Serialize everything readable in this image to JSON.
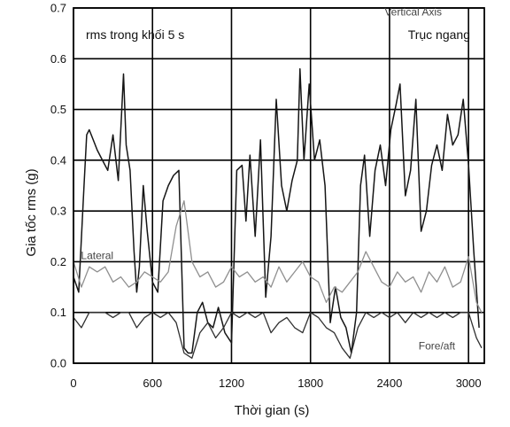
{
  "chart_data": {
    "type": "line",
    "title": "",
    "xlabel": "Thời gian (s)",
    "ylabel": "Gia tốc rms (g)",
    "xlim": [
      0,
      3120
    ],
    "ylim": [
      0,
      0.7
    ],
    "x_ticks": [
      "0",
      "600",
      "1200",
      "1800",
      "2400",
      "3000"
    ],
    "x_tick_values": [
      0,
      600,
      1200,
      1800,
      2400,
      3000
    ],
    "y_ticks": [
      "0.0",
      "0.1",
      "0.2",
      "0.3",
      "0.4",
      "0.5",
      "0.6",
      "0.7"
    ],
    "y_tick_values": [
      0,
      0.1,
      0.2,
      0.3,
      0.4,
      0.5,
      0.6,
      0.7
    ],
    "grid": true,
    "annotations": {
      "top_left": "rms trong khối 5 s",
      "top_right": "Trục ngang"
    },
    "series": [
      {
        "name": "Vertical",
        "color": "#151515",
        "x": [
          0,
          40,
          80,
          100,
          120,
          150,
          180,
          220,
          260,
          300,
          340,
          380,
          400,
          430,
          460,
          480,
          500,
          530,
          560,
          600,
          640,
          680,
          720,
          760,
          800,
          840,
          870,
          900,
          940,
          980,
          1020,
          1060,
          1100,
          1150,
          1200,
          1240,
          1280,
          1310,
          1340,
          1380,
          1420,
          1460,
          1500,
          1540,
          1580,
          1620,
          1660,
          1700,
          1720,
          1750,
          1790,
          1830,
          1870,
          1910,
          1950,
          1990,
          2030,
          2070,
          2110,
          2150,
          2180,
          2210,
          2250,
          2290,
          2330,
          2370,
          2410,
          2450,
          2480,
          2520,
          2560,
          2600,
          2640,
          2680,
          2720,
          2760,
          2800,
          2840,
          2880,
          2920,
          2960,
          3000,
          3040,
          3080
        ],
        "values": [
          0.17,
          0.14,
          0.35,
          0.45,
          0.46,
          0.44,
          0.42,
          0.4,
          0.38,
          0.45,
          0.36,
          0.57,
          0.43,
          0.38,
          0.22,
          0.14,
          0.19,
          0.35,
          0.26,
          0.16,
          0.14,
          0.32,
          0.35,
          0.37,
          0.38,
          0.03,
          0.02,
          0.02,
          0.1,
          0.12,
          0.08,
          0.07,
          0.11,
          0.06,
          0.04,
          0.38,
          0.39,
          0.28,
          0.41,
          0.25,
          0.44,
          0.13,
          0.25,
          0.52,
          0.35,
          0.3,
          0.36,
          0.4,
          0.58,
          0.4,
          0.55,
          0.4,
          0.44,
          0.35,
          0.08,
          0.15,
          0.09,
          0.07,
          0.02,
          0.1,
          0.35,
          0.41,
          0.25,
          0.38,
          0.43,
          0.35,
          0.46,
          0.51,
          0.55,
          0.33,
          0.38,
          0.52,
          0.26,
          0.3,
          0.39,
          0.43,
          0.38,
          0.49,
          0.43,
          0.45,
          0.52,
          0.39,
          0.22,
          0.07
        ]
      },
      {
        "name": "Lateral",
        "color": "#8f8f8f",
        "x": [
          0,
          60,
          120,
          180,
          240,
          300,
          360,
          420,
          480,
          540,
          600,
          660,
          720,
          780,
          840,
          900,
          960,
          1020,
          1080,
          1140,
          1200,
          1260,
          1320,
          1380,
          1440,
          1500,
          1560,
          1620,
          1680,
          1740,
          1800,
          1860,
          1920,
          1980,
          2040,
          2100,
          2160,
          2220,
          2280,
          2340,
          2400,
          2460,
          2520,
          2580,
          2640,
          2700,
          2760,
          2820,
          2880,
          2940,
          3000,
          3060,
          3100
        ],
        "values": [
          0.2,
          0.15,
          0.19,
          0.18,
          0.19,
          0.16,
          0.17,
          0.15,
          0.16,
          0.18,
          0.17,
          0.16,
          0.18,
          0.27,
          0.32,
          0.2,
          0.17,
          0.18,
          0.15,
          0.16,
          0.19,
          0.17,
          0.18,
          0.16,
          0.17,
          0.15,
          0.19,
          0.16,
          0.18,
          0.2,
          0.17,
          0.16,
          0.12,
          0.15,
          0.14,
          0.16,
          0.18,
          0.22,
          0.19,
          0.16,
          0.15,
          0.18,
          0.16,
          0.17,
          0.14,
          0.18,
          0.16,
          0.19,
          0.15,
          0.16,
          0.21,
          0.12,
          0.1
        ]
      },
      {
        "name": "Fore/aft",
        "color": "#303030",
        "x": [
          0,
          60,
          120,
          180,
          240,
          300,
          360,
          420,
          480,
          540,
          600,
          660,
          720,
          780,
          840,
          900,
          960,
          1020,
          1080,
          1140,
          1200,
          1260,
          1320,
          1380,
          1440,
          1500,
          1560,
          1620,
          1680,
          1740,
          1800,
          1860,
          1920,
          1980,
          2040,
          2100,
          2160,
          2220,
          2280,
          2340,
          2400,
          2460,
          2520,
          2580,
          2640,
          2700,
          2760,
          2820,
          2880,
          2940,
          3000,
          3060,
          3100
        ],
        "values": [
          0.09,
          0.07,
          0.1,
          0.1,
          0.1,
          0.09,
          0.1,
          0.1,
          0.07,
          0.09,
          0.1,
          0.09,
          0.1,
          0.08,
          0.02,
          0.01,
          0.06,
          0.08,
          0.05,
          0.07,
          0.1,
          0.09,
          0.1,
          0.09,
          0.1,
          0.06,
          0.08,
          0.09,
          0.07,
          0.06,
          0.1,
          0.09,
          0.07,
          0.06,
          0.03,
          0.01,
          0.07,
          0.1,
          0.09,
          0.1,
          0.09,
          0.1,
          0.08,
          0.1,
          0.09,
          0.1,
          0.09,
          0.1,
          0.09,
          0.1,
          0.1,
          0.05,
          0.03
        ]
      }
    ],
    "series_labels": [
      {
        "text": "Lateral",
        "x": 180,
        "y": 0.205
      },
      {
        "text": "Fore/aft",
        "x": 2760,
        "y": 0.027
      },
      {
        "text": "Vertical Axis",
        "x": 2580,
        "y": 0.685
      }
    ]
  }
}
